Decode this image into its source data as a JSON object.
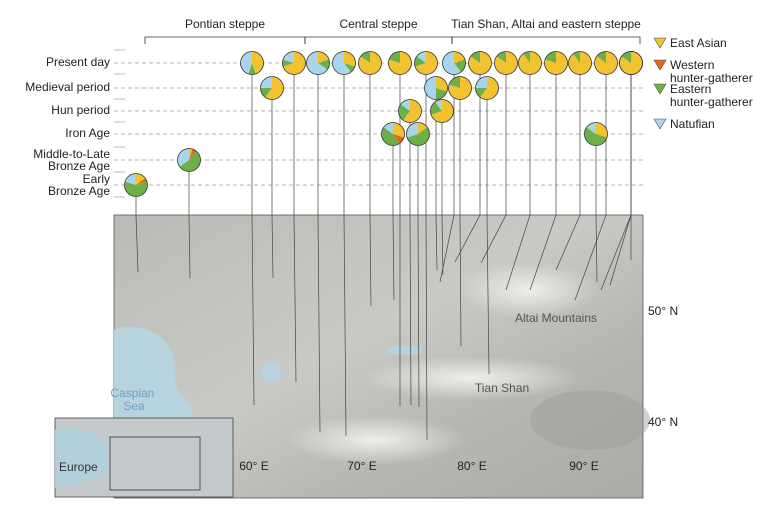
{
  "regions": [
    {
      "label": "Pontian steppe",
      "from_lon": 58,
      "to_lon": 65.5
    },
    {
      "label": "Central steppe",
      "from_lon": 65.5,
      "to_lon": 76
    },
    {
      "label": "Tian Shan, Altai and eastern steppe",
      "from_lon": 76,
      "to_lon": 95
    }
  ],
  "periods": [
    {
      "key": "present",
      "label": "Present day"
    },
    {
      "key": "medieval",
      "label": "Medieval period"
    },
    {
      "key": "hun",
      "label": "Hun period"
    },
    {
      "key": "iron",
      "label": "Iron Age"
    },
    {
      "key": "mlba",
      "label": "Middle-to-Late Bronze Age"
    },
    {
      "key": "eba",
      "label": "Early Bronze Age"
    }
  ],
  "ancestry_legend": [
    {
      "key": "east_asian",
      "label": "East Asian",
      "color": "#f2c230"
    },
    {
      "key": "whg",
      "label": "Western hunter-gatherer",
      "color": "#e8641b"
    },
    {
      "key": "ehg",
      "label": "Eastern hunter-gatherer",
      "color": "#6db04a"
    },
    {
      "key": "natufian",
      "label": "Natufian",
      "color": "#a8d4ec"
    }
  ],
  "map": {
    "lon_labels": [
      {
        "lon": 60,
        "label": "60° E"
      },
      {
        "lon": 70,
        "label": "70° E"
      },
      {
        "lon": 80,
        "label": "80° E"
      },
      {
        "lon": 90,
        "label": "90° E"
      }
    ],
    "lat_labels": [
      {
        "lat": 50,
        "label": "50° N"
      },
      {
        "lat": 40,
        "label": "40° N"
      }
    ],
    "place_labels": [
      {
        "label": "Altai Mountains",
        "lon": 87,
        "lat": 49.3
      },
      {
        "label": "Tian Shan",
        "lon": 80.5,
        "lat": 42.3
      },
      {
        "label": "Caspian Sea",
        "lon": 52.5,
        "lat": 42.5
      },
      {
        "label": "Europe",
        "inset": true
      }
    ]
  },
  "samples": [
    {
      "period": "eba",
      "slot": 0,
      "lon": 51.7,
      "lat": 47.5,
      "ea": 0.15,
      "whg": 0.05,
      "ehg": 0.6,
      "nat": 0.2
    },
    {
      "period": "mlba",
      "slot": 0,
      "lon": 57.5,
      "lat": 47,
      "ea": 0.05,
      "whg": 0.05,
      "ehg": 0.55,
      "nat": 0.35
    },
    {
      "period": "present",
      "slot": 0,
      "lon": 61.5,
      "lat": 40.5,
      "ea": 0.45,
      "whg": 0,
      "ehg": 0.1,
      "nat": 0.45
    },
    {
      "period": "medieval",
      "slot": 0,
      "lon": 62,
      "lat": 47.8,
      "ea": 0.6,
      "whg": 0,
      "ehg": 0.15,
      "nat": 0.25
    },
    {
      "period": "present",
      "slot": 1,
      "lon": 64.5,
      "lat": 45.3,
      "ea": 0.7,
      "whg": 0,
      "ehg": 0.1,
      "nat": 0.2
    },
    {
      "period": "present",
      "slot": 2,
      "lon": 66,
      "lat": 38.7,
      "ea": 0.2,
      "whg": 0,
      "ehg": 0.15,
      "nat": 0.65
    },
    {
      "period": "present",
      "slot": 3,
      "lon": 68.9,
      "lat": 38.8,
      "ea": 0.3,
      "whg": 0,
      "ehg": 0.1,
      "nat": 0.6
    },
    {
      "period": "present",
      "slot": 4,
      "lon": 70.5,
      "lat": 40.5,
      "ea": 0.85,
      "whg": 0,
      "ehg": 0.15,
      "nat": 0
    },
    {
      "period": "present",
      "slot": 5,
      "lon": 71.5,
      "lat": 45.8,
      "ea": 0.8,
      "whg": 0,
      "ehg": 0.2,
      "nat": 0
    },
    {
      "period": "iron",
      "slot": 0,
      "lon": 73.8,
      "lat": 41.5,
      "ea": 0.3,
      "whg": 0.1,
      "ehg": 0.45,
      "nat": 0.15
    },
    {
      "period": "present",
      "slot": 6,
      "lon": 73.8,
      "lat": 46.8,
      "ea": 0.7,
      "whg": 0,
      "ehg": 0.15,
      "nat": 0.15
    },
    {
      "period": "hun",
      "slot": 0,
      "lon": 74.5,
      "lat": 41,
      "ea": 0.6,
      "whg": 0,
      "ehg": 0.25,
      "nat": 0.15
    },
    {
      "period": "iron",
      "slot": 1,
      "lon": 75,
      "lat": 40.5,
      "ea": 0.15,
      "whg": 0,
      "ehg": 0.55,
      "nat": 0.3
    },
    {
      "period": "present",
      "slot": 7,
      "lon": 75.5,
      "lat": 41.5,
      "ea": 0.2,
      "whg": 0,
      "ehg": 0.2,
      "nat": 0.6
    },
    {
      "period": "hun",
      "slot": 1,
      "lon": 76,
      "lat": 48,
      "ea": 0.7,
      "whg": 0,
      "ehg": 0.2,
      "nat": 0.1
    },
    {
      "period": "medieval",
      "slot": 1,
      "lon": 76.3,
      "lat": 48.2,
      "ea": 0.3,
      "whg": 0,
      "ehg": 0.2,
      "nat": 0.5
    },
    {
      "period": "present",
      "slot": 8,
      "lon": 77.5,
      "lat": 48.5,
      "ea": 0.85,
      "whg": 0,
      "ehg": 0.15,
      "nat": 0
    },
    {
      "period": "medieval",
      "slot": 2,
      "lon": 78.5,
      "lat": 44.5,
      "ea": 0.8,
      "whg": 0,
      "ehg": 0.2,
      "nat": 0
    },
    {
      "period": "present",
      "slot": 9,
      "lon": 79.5,
      "lat": 42.5,
      "ea": 0.85,
      "whg": 0,
      "ehg": 0.15,
      "nat": 0
    },
    {
      "period": "medieval",
      "slot": 3,
      "lon": 80,
      "lat": 48.5,
      "ea": 0.6,
      "whg": 0,
      "ehg": 0.15,
      "nat": 0.25
    },
    {
      "period": "present",
      "slot": 10,
      "lon": 82,
      "lat": 48.3,
      "ea": 0.9,
      "whg": 0,
      "ehg": 0.1,
      "nat": 0
    },
    {
      "period": "present",
      "slot": 11,
      "lon": 84,
      "lat": 49,
      "ea": 0.8,
      "whg": 0,
      "ehg": 0.2,
      "nat": 0
    },
    {
      "period": "present",
      "slot": 12,
      "lon": 86,
      "lat": 49.5,
      "ea": 0.9,
      "whg": 0,
      "ehg": 0.1,
      "nat": 0
    },
    {
      "period": "present",
      "slot": 13,
      "lon": 88.5,
      "lat": 49.5,
      "ea": 0.85,
      "whg": 0,
      "ehg": 0.15,
      "nat": 0
    },
    {
      "period": "present",
      "slot": 14,
      "lon": 90.5,
      "lat": 49.8,
      "ea": 0.85,
      "whg": 0,
      "ehg": 0.15,
      "nat": 0
    },
    {
      "period": "iron",
      "slot": 2,
      "lon": 91,
      "lat": 50,
      "ea": 0.3,
      "whg": 0,
      "ehg": 0.55,
      "nat": 0.15
    },
    {
      "period": "present",
      "slot": 15,
      "lon": 92.5,
      "lat": 50,
      "ea": 0.7,
      "whg": 0,
      "ehg": 0.1,
      "nat": 0.2
    },
    {
      "period": "present",
      "slot": 16,
      "lon": 94,
      "lat": 50.5,
      "ea": 0.85,
      "whg": 0,
      "ehg": 0.15,
      "nat": 0
    }
  ]
}
